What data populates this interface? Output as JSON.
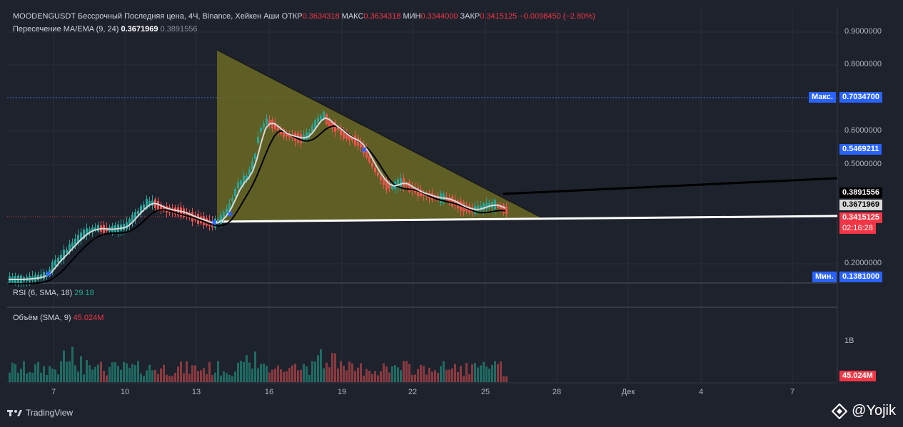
{
  "legend": {
    "symbol": "MOODENGUSDT Бессрочный Последняя цена, 4Ч, Binance, Хейкен Аши",
    "open_label": "ОТКР",
    "open": "0.3634318",
    "high_label": "МАКС",
    "high": "0.3634318",
    "low_label": "МИН",
    "low": "0.3344000",
    "close_label": "ЗАКР",
    "close": "0.3415125",
    "change": "−0.0098450 (−2.80%)",
    "ma_name": "Пересечение MA/EMA (9, 24)",
    "ma_val1": "0.3671969",
    "ma_val2": "0.3891556",
    "rsi_name": "RSI (6, SMA, 18)",
    "rsi_val": "29.18",
    "vol_name": "Объём (SMA, 9)",
    "vol_val": "45.024M"
  },
  "price_axis": [
    "0.9000000",
    "0.8000000",
    "0.6000000",
    "0.5000000",
    "0.2000000"
  ],
  "price_labels": {
    "max_label": "Макс.",
    "max_val": "0.7034700",
    "level1": "0.5469211",
    "ema": "0.3891556",
    "ma": "0.3671969",
    "last": "0.3415125",
    "countdown": "02:16:28",
    "min_label": "Мин.",
    "min_val": "0.1381000"
  },
  "volume_axis": "1B",
  "volume_label": "45.024M",
  "time_axis": [
    "7",
    "10",
    "13",
    "16",
    "19",
    "22",
    "25",
    "28",
    "Дек",
    "4",
    "7"
  ],
  "footer": "TradingView",
  "watermark": "@Yojik",
  "colors": {
    "up": "#26a69a",
    "down": "#ef5350",
    "bg": "#1e222d",
    "triangle": "#6b6a24"
  }
}
